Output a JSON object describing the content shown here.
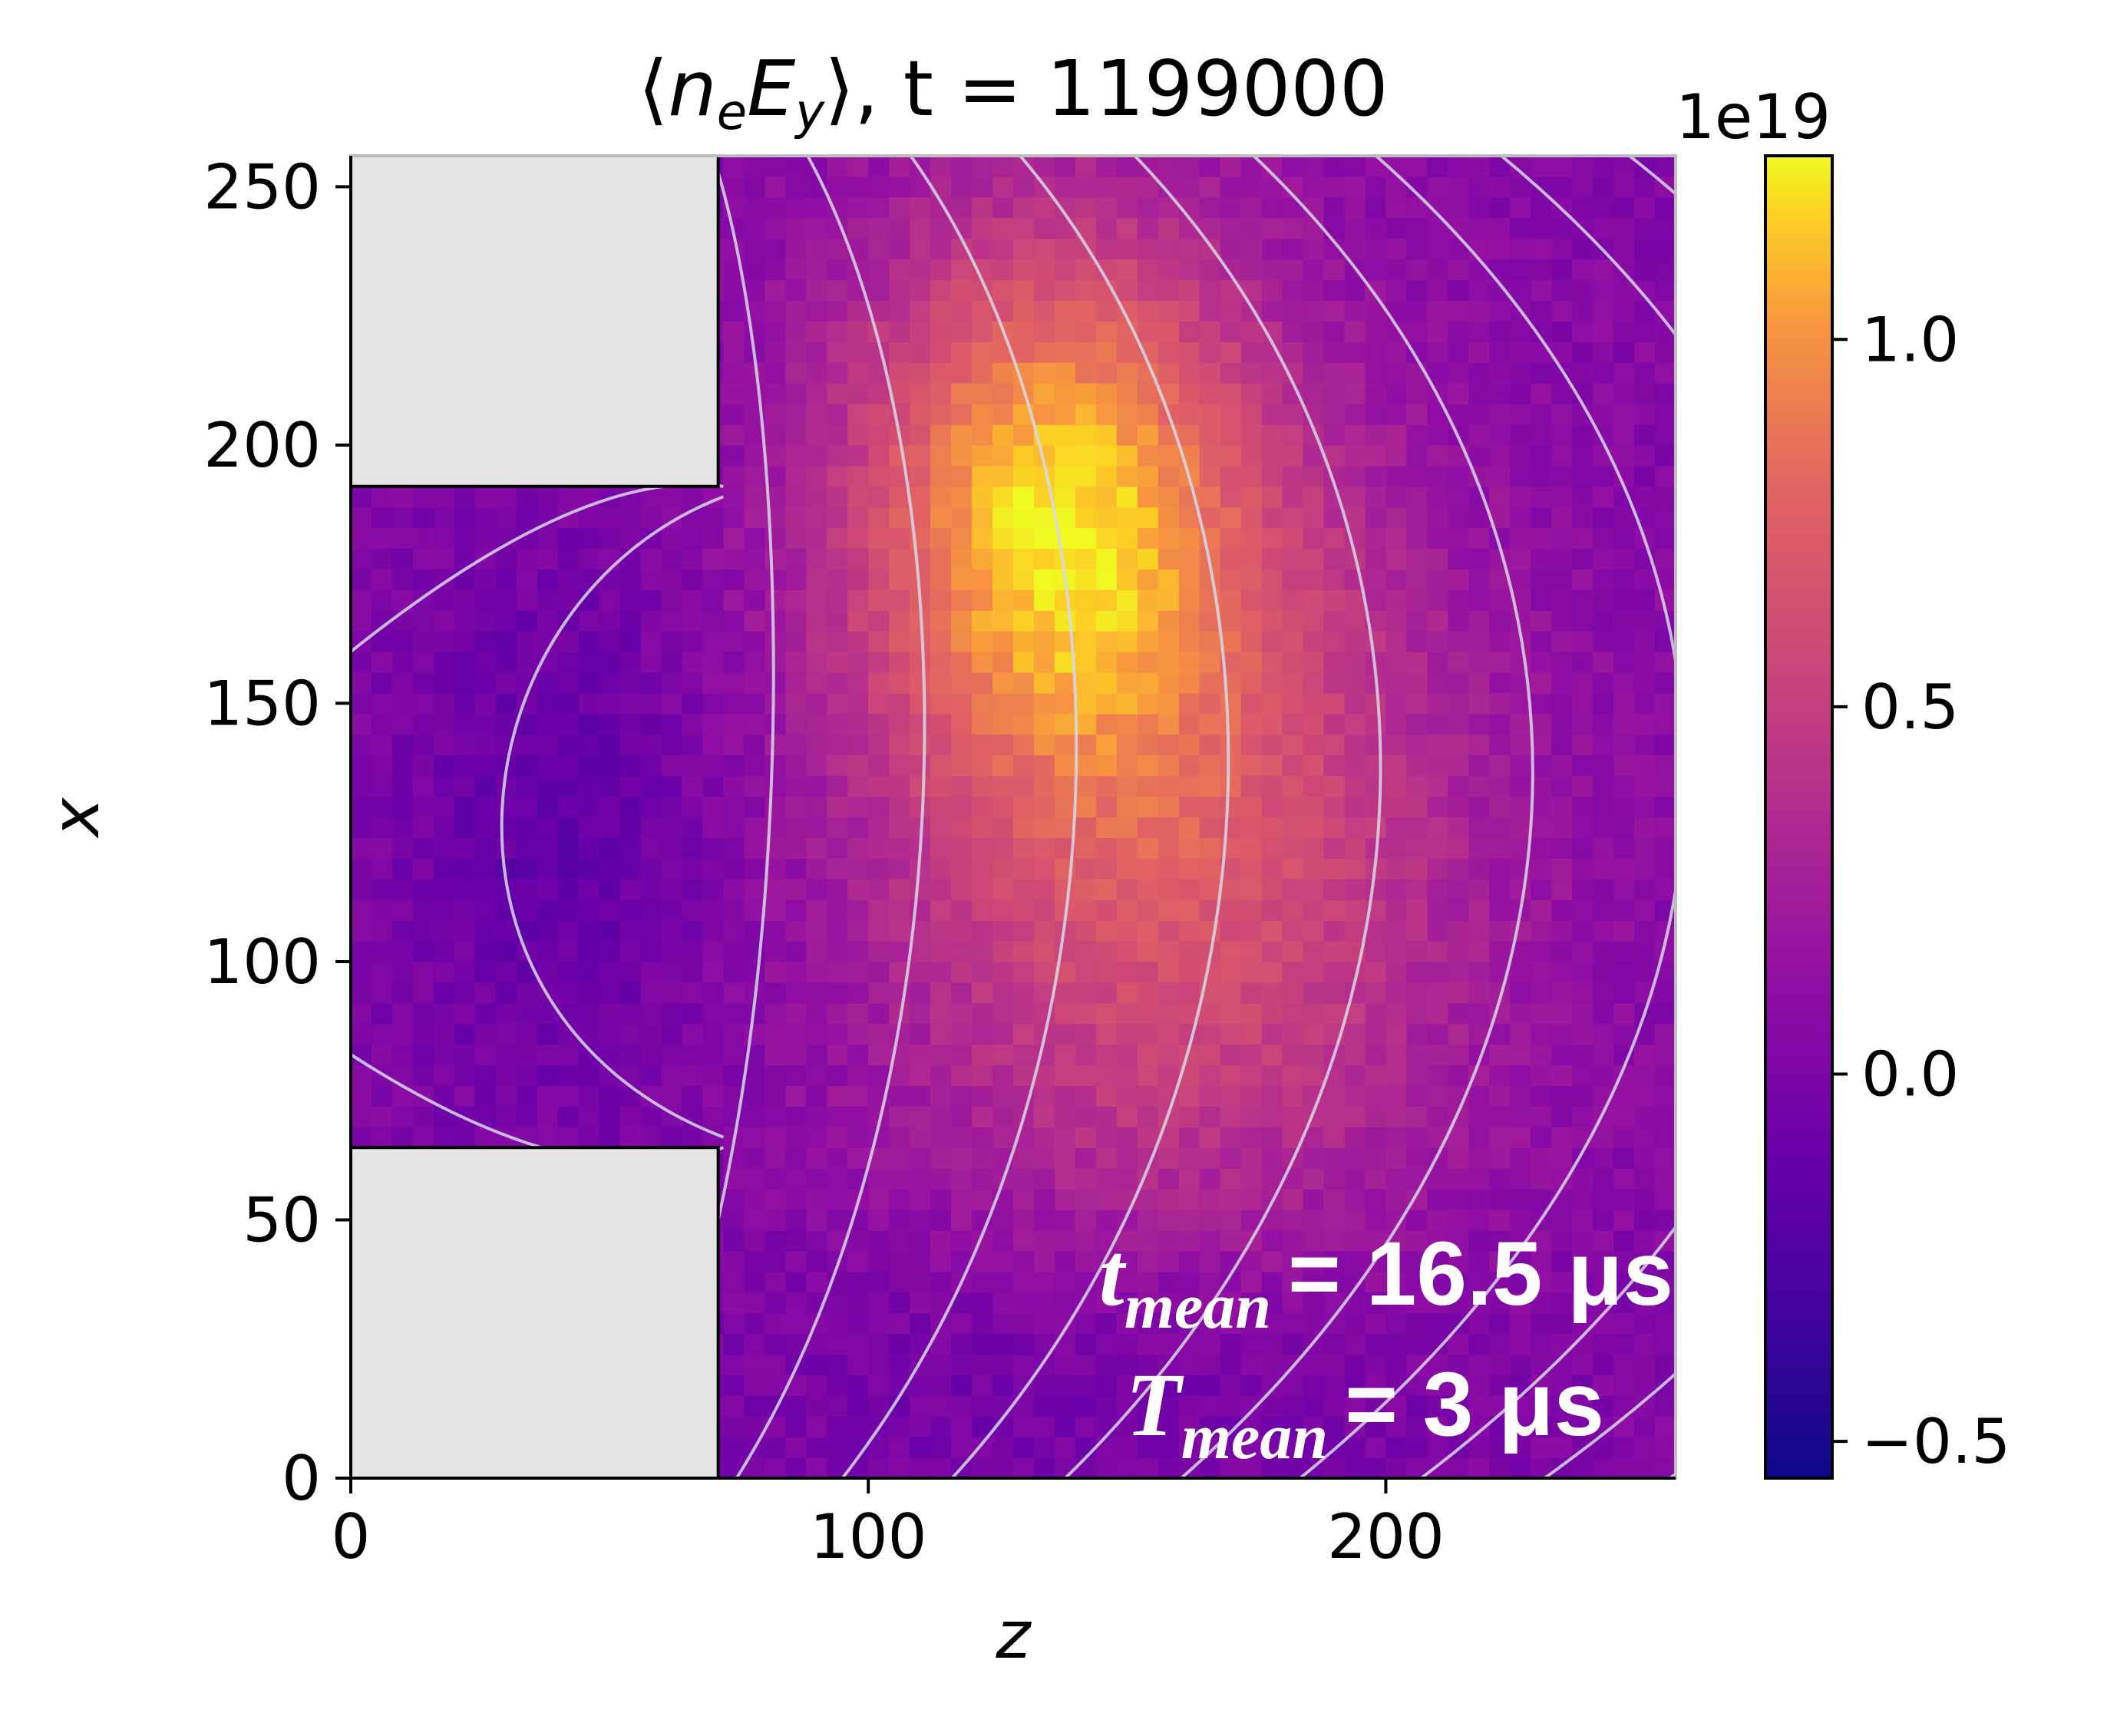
{
  "chart_data": {
    "type": "heatmap",
    "title": {
      "bracket_open": "⟨",
      "n": "n",
      "n_sub": "e",
      "E": "E",
      "E_sub": "y",
      "bracket_close": "⟩",
      "rest": ", t = 1199000"
    },
    "xlabel": "z",
    "ylabel": "x",
    "xlim": [
      0,
      256
    ],
    "ylim": [
      0,
      256
    ],
    "xticks": [
      0,
      100,
      200
    ],
    "yticks": [
      0,
      50,
      100,
      150,
      200,
      250
    ],
    "colormap": "plasma",
    "colorbar": {
      "range": [
        -0.55,
        1.25
      ],
      "ticks": [
        -0.5,
        0.0,
        0.5,
        1.0
      ],
      "tick_labels": [
        "−0.5",
        "0.0",
        "0.5",
        "1.0"
      ],
      "offset_label": "1e19"
    },
    "obstacles": [
      {
        "z": [
          0,
          71
        ],
        "x": [
          192,
          256
        ],
        "color": "#e4e4e4"
      },
      {
        "z": [
          0,
          71
        ],
        "x": [
          0,
          64
        ],
        "color": "#e4e4e4"
      }
    ],
    "field_description": {
      "hotspot_center": {
        "z": 135,
        "x": 190,
        "value": 0.95
      },
      "secondary_band": {
        "z": 160,
        "x": 120,
        "value": 0.6
      },
      "low_region": {
        "z": 40,
        "x": 125,
        "value": -0.2
      },
      "background_value": 0.05
    },
    "contours_color": "#d8d8e8",
    "annotations": [
      {
        "var": "t",
        "sub": "mean",
        "text": "= 16.5 μs"
      },
      {
        "var": "T",
        "sub": "mean",
        "text": "= 3 μs"
      }
    ]
  }
}
